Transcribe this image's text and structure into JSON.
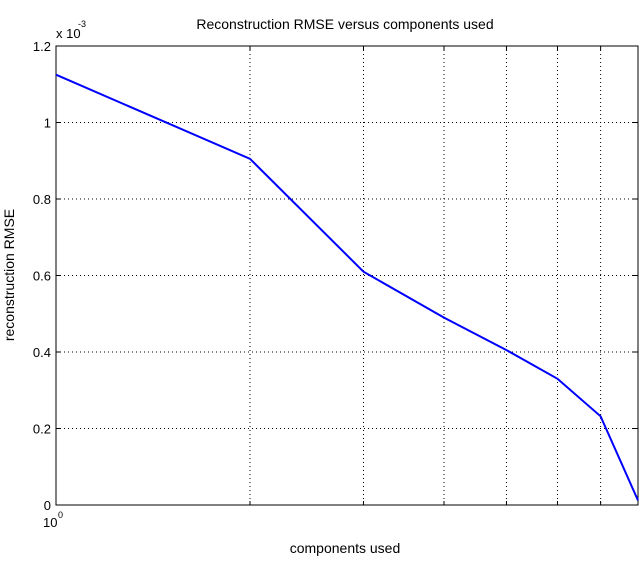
{
  "chart_data": {
    "type": "line",
    "title": "Reconstruction RMSE versus components used",
    "xlabel": "components used",
    "ylabel": "reconstruction RMSE",
    "xscale": "log",
    "xlim": [
      1,
      8
    ],
    "ylim": [
      0,
      1.2
    ],
    "y_multiplier_base": "x 10",
    "y_multiplier_exp": "-3",
    "x_tick_label_base": "10",
    "x_tick_label_exp": "0",
    "x_grid": [
      2,
      3,
      4,
      5,
      6,
      7
    ],
    "y_ticks": [
      0,
      0.2,
      0.4,
      0.6,
      0.8,
      1,
      1.2
    ],
    "y_tick_labels": [
      "0",
      "0.2",
      "0.4",
      "0.6",
      "0.8",
      "1",
      "1.2"
    ],
    "grid": true,
    "series": [
      {
        "name": "RMSE",
        "color": "#0000ff",
        "x": [
          1,
          2,
          3,
          4,
          5,
          6,
          7,
          8
        ],
        "y": [
          1.125,
          0.905,
          0.61,
          0.49,
          0.405,
          0.33,
          0.232,
          0.012
        ]
      }
    ]
  }
}
